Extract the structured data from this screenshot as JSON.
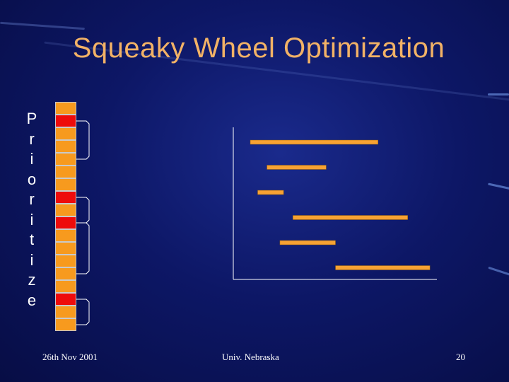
{
  "slide": {
    "title": "Squeaky Wheel Optimization",
    "vertical_word": "Prioritize",
    "footer": {
      "date": "26th Nov 2001",
      "center": "Univ. Nebraska",
      "page": "20"
    }
  },
  "queue": {
    "cells": [
      "orange",
      "red",
      "orange",
      "orange",
      "orange",
      "orange",
      "orange",
      "red",
      "orange",
      "red",
      "orange",
      "orange",
      "orange",
      "orange",
      "orange",
      "red",
      "orange",
      "orange"
    ],
    "colors": {
      "orange": "#f79a1e",
      "red": "#ee0b0b"
    }
  },
  "schedule": {
    "bar_color": "#f7a233",
    "bars": [
      {
        "start": 0.0,
        "end": 0.69
      },
      {
        "start": 0.09,
        "end": 0.41
      },
      {
        "start": 0.04,
        "end": 0.18
      },
      {
        "start": 0.23,
        "end": 0.85
      },
      {
        "start": 0.16,
        "end": 0.46
      },
      {
        "start": 0.46,
        "end": 0.97
      }
    ]
  }
}
